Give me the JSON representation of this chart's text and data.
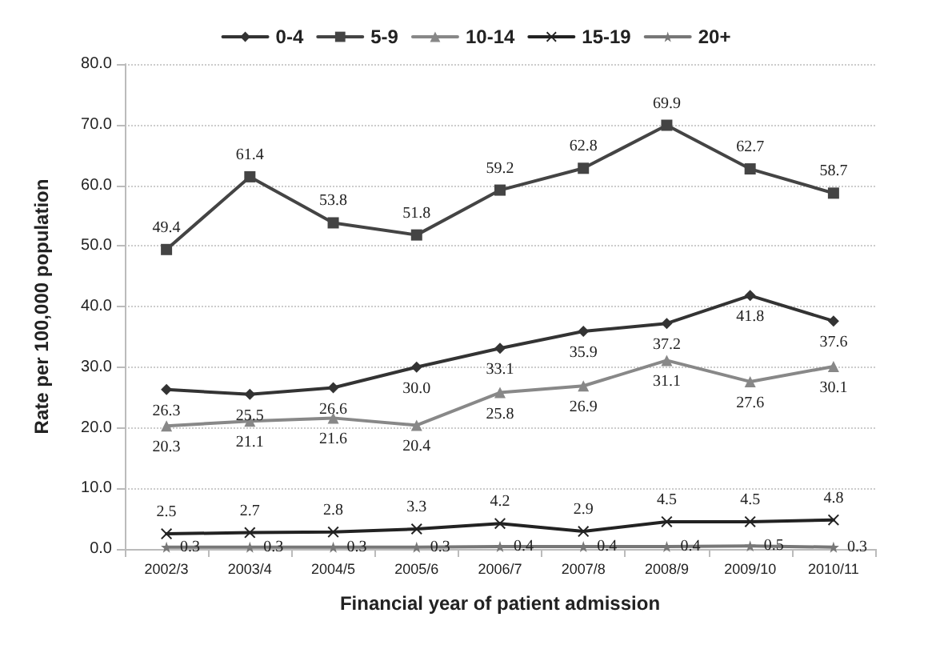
{
  "chart_data": {
    "type": "line",
    "xlabel": "Financial year of patient admission",
    "ylabel": "Rate per 100,000 population",
    "categories": [
      "2002/3",
      "2003/4",
      "2004/5",
      "2005/6",
      "2006/7",
      "2007/8",
      "2008/9",
      "2009/10",
      "2010/11"
    ],
    "ylim": [
      0,
      80
    ],
    "yticks": [
      {
        "value": 0,
        "label": "0.0"
      },
      {
        "value": 10,
        "label": "10.0"
      },
      {
        "value": 20,
        "label": "20.0"
      },
      {
        "value": 30,
        "label": "30.0"
      },
      {
        "value": 40,
        "label": "40.0"
      },
      {
        "value": 50,
        "label": "50.0"
      },
      {
        "value": 60,
        "label": "60.0"
      },
      {
        "value": 70,
        "label": "70.0"
      },
      {
        "value": 80,
        "label": "80.0"
      }
    ],
    "grid": "y",
    "legend": "top",
    "line_style": "solid",
    "series": [
      {
        "name": "0-4",
        "color": "#333333",
        "marker": "diamond",
        "values": [
          26.3,
          25.5,
          26.6,
          30.0,
          33.1,
          35.9,
          37.2,
          41.8,
          37.6
        ],
        "value_labels": [
          "26.3",
          "25.5",
          "26.6",
          "30.0",
          "33.1",
          "35.9",
          "37.2",
          "41.8",
          "37.6"
        ]
      },
      {
        "name": "5-9",
        "color": "#444444",
        "marker": "square",
        "values": [
          49.4,
          61.4,
          53.8,
          51.8,
          59.2,
          62.8,
          69.9,
          62.7,
          58.7
        ],
        "value_labels": [
          "49.4",
          "61.4",
          "53.8",
          "51.8",
          "59.2",
          "62.8",
          "69.9",
          "62.7",
          "58.7"
        ]
      },
      {
        "name": "10-14",
        "color": "#888888",
        "marker": "triangle",
        "values": [
          20.3,
          21.1,
          21.6,
          20.4,
          25.8,
          26.9,
          31.1,
          27.6,
          30.1
        ],
        "value_labels": [
          "20.3",
          "21.1",
          "21.6",
          "20.4",
          "25.8",
          "26.9",
          "31.1",
          "27.6",
          "30.1"
        ]
      },
      {
        "name": "15-19",
        "color": "#222222",
        "marker": "cross",
        "values": [
          2.5,
          2.7,
          2.8,
          3.3,
          4.2,
          2.9,
          4.5,
          4.5,
          4.8
        ],
        "value_labels": [
          "2.5",
          "2.7",
          "2.8",
          "3.3",
          "4.2",
          "2.9",
          "4.5",
          "4.5",
          "4.8"
        ]
      },
      {
        "name": "20+",
        "color": "#777777",
        "marker": "star",
        "values": [
          0.3,
          0.3,
          0.3,
          0.3,
          0.4,
          0.4,
          0.4,
          0.5,
          0.3
        ],
        "value_labels": [
          "0.3",
          "0.3",
          "0.3",
          "0.3",
          "0.4",
          "0.4",
          "0.4",
          "0.5",
          "0.3"
        ]
      }
    ]
  }
}
